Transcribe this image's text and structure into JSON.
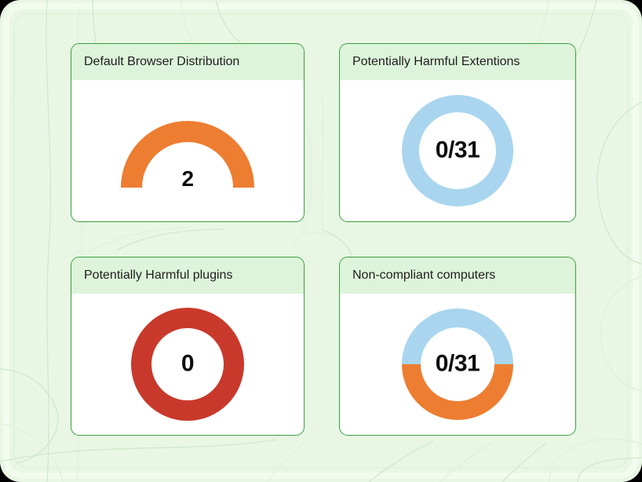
{
  "theme": {
    "page_bg": "#e9f6e4",
    "contour_line": "#cfe9c8",
    "contour_line_light": "#def2d8",
    "edge_band": "#f2fbee",
    "card_border": "#35a03c",
    "card_header_bg": "#ddf4da",
    "card_bg": "#ffffff",
    "title_color": "#1e1e1e",
    "value_color": "#0d0d0d",
    "accent_orange": "#ed7d31",
    "accent_blue": "#a9d5ef",
    "accent_red": "#c9392b"
  },
  "cards": [
    {
      "title": "Default Browser Distribution",
      "value_label": "2",
      "value": 2,
      "chart": {
        "type": "half-donut",
        "outer_radius": 85,
        "thickness": 27,
        "segments": [
          {
            "name": "default-browsers",
            "color": "#ed7d31",
            "start_deg": 180,
            "end_deg": 360
          }
        ]
      }
    },
    {
      "title": "Potentially Harmful Extentions",
      "value_label": "0/31",
      "value": 0,
      "total": 31,
      "chart": {
        "type": "donut",
        "outer_radius": 71,
        "thickness": 22,
        "segments": [
          {
            "name": "safe",
            "color": "#a9d5ef",
            "start_deg": 0,
            "end_deg": 360
          }
        ]
      }
    },
    {
      "title": "Potentially Harmful plugins",
      "value_label": "0",
      "value": 0,
      "chart": {
        "type": "donut",
        "outer_radius": 72,
        "thickness": 26,
        "segments": [
          {
            "name": "harmful-plugins",
            "color": "#c9392b",
            "start_deg": 0,
            "end_deg": 360
          }
        ]
      }
    },
    {
      "title": "Non-compliant computers",
      "value_label": "0/31",
      "value": 0,
      "total": 31,
      "chart": {
        "type": "donut",
        "outer_radius": 71,
        "thickness": 24,
        "segments": [
          {
            "name": "compliant",
            "color": "#a9d5ef",
            "start_deg": 180,
            "end_deg": 360
          },
          {
            "name": "non-compliant",
            "color": "#ed7d31",
            "start_deg": 0,
            "end_deg": 180
          }
        ]
      }
    }
  ],
  "chart_data": [
    {
      "type": "bar",
      "subtype": "half-donut-gauge",
      "title": "Default Browser Distribution",
      "values": [
        2
      ],
      "categories": [
        "default browsers"
      ],
      "color": "#ed7d31",
      "center_label": "2"
    },
    {
      "type": "pie",
      "subtype": "donut",
      "title": "Potentially Harmful Extentions",
      "values": [
        31
      ],
      "categories": [
        "extensions"
      ],
      "color": "#a9d5ef",
      "center_label": "0/31",
      "value": 0,
      "total": 31
    },
    {
      "type": "pie",
      "subtype": "donut",
      "title": "Potentially Harmful plugins",
      "values": [
        1
      ],
      "categories": [
        "plugins"
      ],
      "color": "#c9392b",
      "center_label": "0",
      "value": 0
    },
    {
      "type": "pie",
      "subtype": "donut",
      "title": "Non-compliant computers",
      "series": [
        {
          "name": "top-half",
          "fraction": 0.5,
          "color": "#a9d5ef"
        },
        {
          "name": "bottom-half",
          "fraction": 0.5,
          "color": "#ed7d31"
        }
      ],
      "center_label": "0/31",
      "value": 0,
      "total": 31
    }
  ]
}
